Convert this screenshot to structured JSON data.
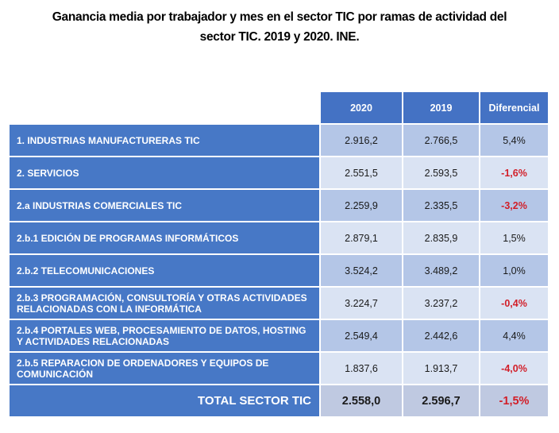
{
  "chart_data": {
    "type": "table",
    "title": "Ganancia media por trabajador y mes en el sector TIC por ramas de actividad del\nsector TIC. 2019 y 2020. INE.",
    "columns": [
      "2020",
      "2019",
      "Diferencial"
    ],
    "rows": [
      {
        "label": "1. INDUSTRIAS MANUFACTURERAS TIC",
        "y2020": "2.916,2",
        "y2019": "2.766,5",
        "diff": "5,4%"
      },
      {
        "label": "2. SERVICIOS",
        "y2020": "2.551,5",
        "y2019": "2.593,5",
        "diff": "-1,6%"
      },
      {
        "label": "2.a INDUSTRIAS COMERCIALES TIC",
        "y2020": "2.259,9",
        "y2019": "2.335,5",
        "diff": "-3,2%"
      },
      {
        "label": "2.b.1 EDICIÓN DE PROGRAMAS INFORMÁTICOS",
        "y2020": "2.879,1",
        "y2019": "2.835,9",
        "diff": "1,5%"
      },
      {
        "label": "2.b.2 TELECOMUNICACIONES",
        "y2020": "3.524,2",
        "y2019": "3.489,2",
        "diff": "1,0%"
      },
      {
        "label": "2.b.3 PROGRAMACIÓN, CONSULTORÍA Y OTRAS ACTIVIDADES RELACIONADAS CON LA INFORMÁTICA",
        "y2020": "3.224,7",
        "y2019": "3.237,2",
        "diff": "-0,4%"
      },
      {
        "label": "2.b.4 PORTALES WEB, PROCESAMIENTO DE DATOS, HOSTING Y ACTIVIDADES RELACIONADAS",
        "y2020": "2.549,4",
        "y2019": "2.442,6",
        "diff": "4,4%"
      },
      {
        "label": "2.b.5 REPARACION DE ORDENADORES Y EQUIPOS DE COMUNICACIÓN",
        "y2020": "1.837,6",
        "y2019": "1.913,7",
        "diff": "-4,0%"
      },
      {
        "label": "TOTAL SECTOR TIC",
        "y2020": "2.558,0",
        "y2019": "2.596,7",
        "diff": "-1,5%",
        "is_total": true
      }
    ],
    "legend_position": "none",
    "grid": "white 2px separators"
  },
  "colors": {
    "header_blue": "#4472C4",
    "row_blue": "#4778C6",
    "band_dark": "#B4C6E7",
    "band_light": "#DAE3F3",
    "band_total": "#BFC9E1",
    "negative_red": "#D21E28",
    "text_dark": "#1A1A1A",
    "text_white": "#FFFFFF"
  }
}
